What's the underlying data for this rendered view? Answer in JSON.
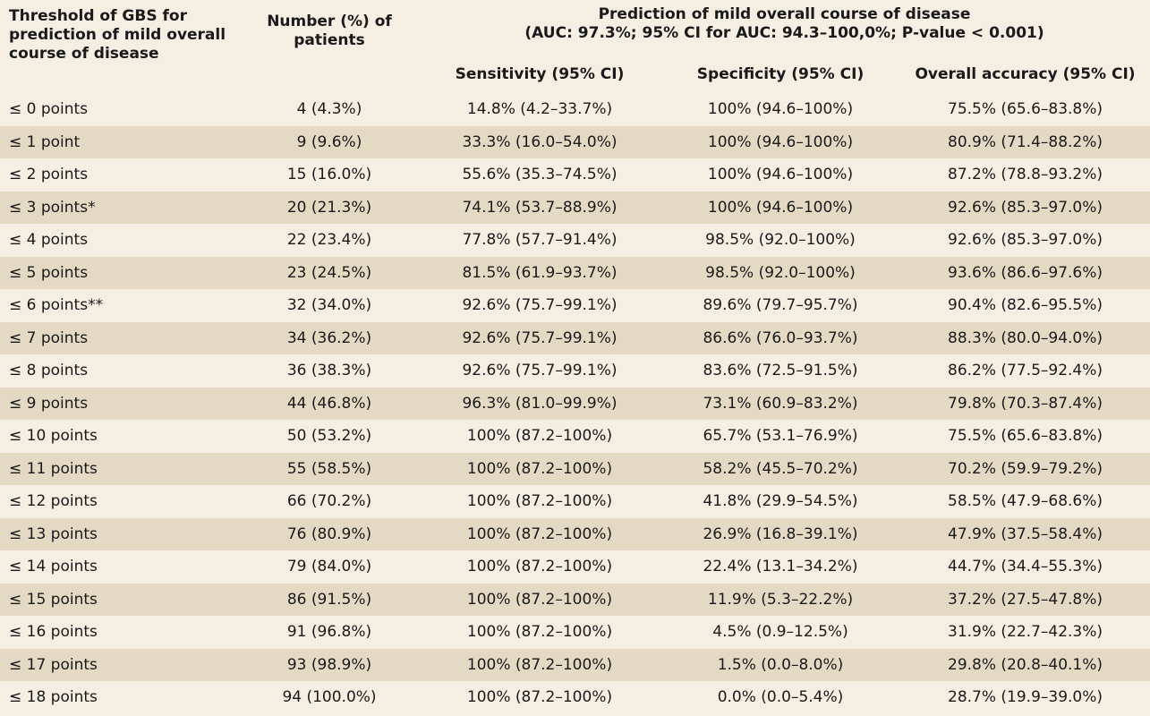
{
  "header": {
    "threshold": "Threshold of GBS for prediction of mild overall course of disease",
    "number": "Number (%) of patients",
    "group_title": "Prediction of mild overall course of disease",
    "group_subtitle": "(AUC: 97.3%; 95% CI for AUC: 94.3–100,0%; P-value < 0.001)",
    "sensitivity": "Sensitivity (95% CI)",
    "specificity": "Specificity (95% CI)",
    "accuracy": "Overall accuracy (95% CI)"
  },
  "rows": [
    {
      "threshold": "≤ 0 points",
      "number": "4 (4.3%)",
      "sensitivity": "14.8% (4.2–33.7%)",
      "specificity": "100% (94.6–100%)",
      "accuracy": "75.5% (65.6–83.8%)"
    },
    {
      "threshold": "≤ 1 point",
      "number": "9 (9.6%)",
      "sensitivity": "33.3% (16.0–54.0%)",
      "specificity": "100% (94.6–100%)",
      "accuracy": "80.9% (71.4–88.2%)"
    },
    {
      "threshold": "≤ 2 points",
      "number": "15 (16.0%)",
      "sensitivity": "55.6% (35.3–74.5%)",
      "specificity": "100% (94.6–100%)",
      "accuracy": "87.2% (78.8–93.2%)"
    },
    {
      "threshold": "≤ 3 points*",
      "number": "20 (21.3%)",
      "sensitivity": "74.1% (53.7–88.9%)",
      "specificity": "100% (94.6–100%)",
      "accuracy": "92.6% (85.3–97.0%)"
    },
    {
      "threshold": "≤ 4 points",
      "number": "22 (23.4%)",
      "sensitivity": "77.8% (57.7–91.4%)",
      "specificity": "98.5% (92.0–100%)",
      "accuracy": "92.6% (85.3–97.0%)"
    },
    {
      "threshold": "≤ 5 points",
      "number": "23 (24.5%)",
      "sensitivity": "81.5% (61.9–93.7%)",
      "specificity": "98.5% (92.0–100%)",
      "accuracy": "93.6% (86.6–97.6%)"
    },
    {
      "threshold": "≤ 6 points**",
      "number": "32 (34.0%)",
      "sensitivity": "92.6% (75.7–99.1%)",
      "specificity": "89.6% (79.7–95.7%)",
      "accuracy": "90.4% (82.6–95.5%)"
    },
    {
      "threshold": "≤ 7 points",
      "number": "34 (36.2%)",
      "sensitivity": "92.6% (75.7–99.1%)",
      "specificity": "86.6% (76.0–93.7%)",
      "accuracy": "88.3% (80.0–94.0%)"
    },
    {
      "threshold": "≤ 8 points",
      "number": "36 (38.3%)",
      "sensitivity": "92.6% (75.7–99.1%)",
      "specificity": "83.6% (72.5–91.5%)",
      "accuracy": "86.2% (77.5–92.4%)"
    },
    {
      "threshold": "≤ 9 points",
      "number": "44 (46.8%)",
      "sensitivity": "96.3% (81.0–99.9%)",
      "specificity": "73.1% (60.9–83.2%)",
      "accuracy": "79.8% (70.3–87.4%)"
    },
    {
      "threshold": "≤ 10 points",
      "number": "50 (53.2%)",
      "sensitivity": "100% (87.2–100%)",
      "specificity": "65.7% (53.1–76.9%)",
      "accuracy": "75.5% (65.6–83.8%)"
    },
    {
      "threshold": "≤ 11 points",
      "number": "55 (58.5%)",
      "sensitivity": "100% (87.2–100%)",
      "specificity": "58.2% (45.5–70.2%)",
      "accuracy": "70.2% (59.9–79.2%)"
    },
    {
      "threshold": "≤ 12 points",
      "number": "66 (70.2%)",
      "sensitivity": "100% (87.2–100%)",
      "specificity": "41.8% (29.9–54.5%)",
      "accuracy": "58.5% (47.9–68.6%)"
    },
    {
      "threshold": "≤ 13 points",
      "number": "76 (80.9%)",
      "sensitivity": "100% (87.2–100%)",
      "specificity": "26.9% (16.8–39.1%)",
      "accuracy": "47.9% (37.5–58.4%)"
    },
    {
      "threshold": "≤ 14 points",
      "number": "79 (84.0%)",
      "sensitivity": "100% (87.2–100%)",
      "specificity": "22.4% (13.1–34.2%)",
      "accuracy": "44.7% (34.4–55.3%)"
    },
    {
      "threshold": "≤ 15 points",
      "number": "86 (91.5%)",
      "sensitivity": "100% (87.2–100%)",
      "specificity": "11.9% (5.3–22.2%)",
      "accuracy": "37.2% (27.5–47.8%)"
    },
    {
      "threshold": "≤ 16 points",
      "number": "91 (96.8%)",
      "sensitivity": "100% (87.2–100%)",
      "specificity": "4.5% (0.9–12.5%)",
      "accuracy": "31.9% (22.7–42.3%)"
    },
    {
      "threshold": "≤ 17 points",
      "number": "93 (98.9%)",
      "sensitivity": "100% (87.2–100%)",
      "specificity": "1.5% (0.0–8.0%)",
      "accuracy": "29.8% (20.8–40.1%)"
    },
    {
      "threshold": "≤ 18 points",
      "number": "94 (100.0%)",
      "sensitivity": "100% (87.2–100%)",
      "specificity": "0.0% (0.0–5.4%)",
      "accuracy": "28.7% (19.9–39.0%)"
    }
  ],
  "colors": {
    "background": "#f5eee3",
    "stripe": "#e4d9c2",
    "text": "#1a1a1a"
  }
}
